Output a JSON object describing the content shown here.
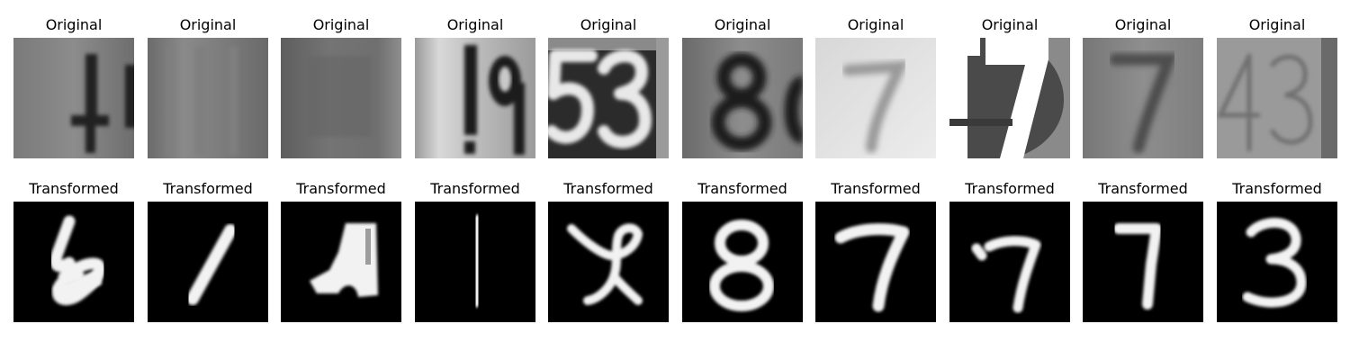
{
  "rows": [
    {
      "caption": "Original",
      "images": [
        {
          "depicts": "4",
          "style": "photo"
        },
        {
          "depicts": "",
          "style": "photo"
        },
        {
          "depicts": "",
          "style": "photo"
        },
        {
          "depicts": "19",
          "style": "photo"
        },
        {
          "depicts": "53",
          "style": "photo"
        },
        {
          "depicts": "8",
          "style": "photo"
        },
        {
          "depicts": "7",
          "style": "photo"
        },
        {
          "depicts": "17",
          "style": "photo"
        },
        {
          "depicts": "7",
          "style": "photo"
        },
        {
          "depicts": "43",
          "style": "photo"
        }
      ]
    },
    {
      "caption": "Transformed",
      "images": [
        {
          "depicts": "6",
          "style": "digit"
        },
        {
          "depicts": "1",
          "style": "digit"
        },
        {
          "depicts": "",
          "style": "digit"
        },
        {
          "depicts": "1",
          "style": "digit"
        },
        {
          "depicts": "9",
          "style": "digit"
        },
        {
          "depicts": "8",
          "style": "digit"
        },
        {
          "depicts": "7",
          "style": "digit"
        },
        {
          "depicts": "7",
          "style": "digit"
        },
        {
          "depicts": "7",
          "style": "digit"
        },
        {
          "depicts": "3",
          "style": "digit"
        }
      ]
    }
  ],
  "colors": {
    "digit_background": "#000000",
    "digit_stroke": "#f2f2f2",
    "caption_text": "#000000"
  }
}
